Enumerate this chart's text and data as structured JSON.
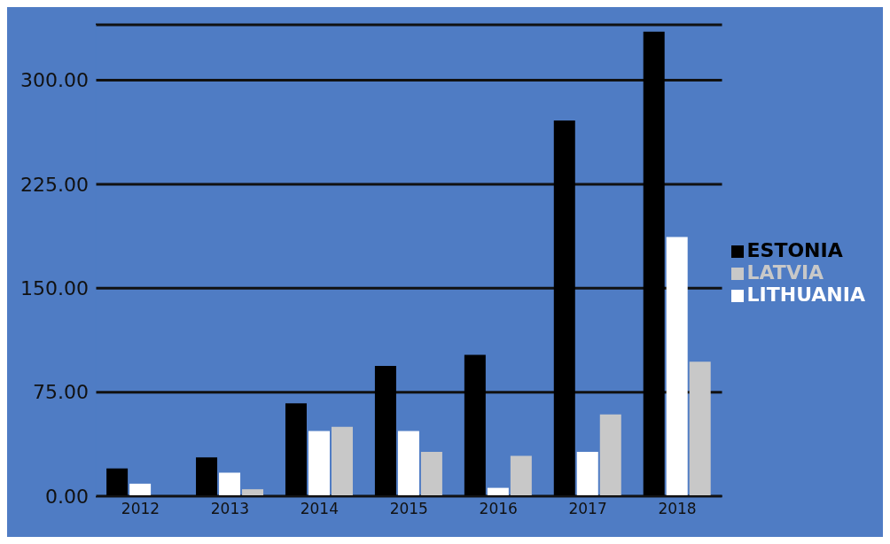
{
  "chart_data": {
    "type": "bar",
    "categories": [
      "2012",
      "2013",
      "2014",
      "2015",
      "2016",
      "2017",
      "2018"
    ],
    "series": [
      {
        "name": "ESTONIA",
        "color": "#000000",
        "values": [
          20,
          28,
          67,
          94,
          102,
          271,
          335
        ]
      },
      {
        "name": "LITHUANIA",
        "color": "#ffffff",
        "values": [
          9,
          17,
          47,
          47,
          6,
          32,
          187
        ]
      },
      {
        "name": "LATVIA",
        "color": "#c8c8c8",
        "values": [
          null,
          5,
          50,
          32,
          29,
          59,
          97
        ]
      }
    ],
    "ylim": [
      0,
      340
    ],
    "yticks": [
      {
        "value": 0,
        "label": "0.00"
      },
      {
        "value": 75,
        "label": "75.00"
      },
      {
        "value": 150,
        "label": "150.00"
      },
      {
        "value": 225,
        "label": "225.00"
      },
      {
        "value": 300,
        "label": "300.00"
      }
    ],
    "grid": "y",
    "legend": "right"
  }
}
